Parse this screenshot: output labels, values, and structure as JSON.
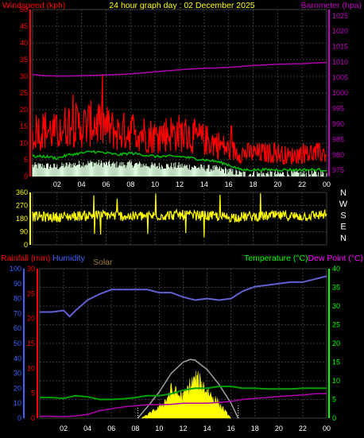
{
  "header": {
    "title": "24 hour graph day : 02 December 2025",
    "windspeed_label": "Windspeed (kph)",
    "barometer_label": "Barometer (hpa)"
  },
  "colors": {
    "background": "#000000",
    "grid": "#3a3a3a",
    "wind_axis": "#ff0000",
    "baro_axis": "#c000c0",
    "wind_gust": "#ff0000",
    "wind_avg": "#00c000",
    "wind_min": "#e0ffe0",
    "baro_line": "#b000b0",
    "direction": "#ffff00",
    "dir_axis": "#ffff00",
    "rain_axis": "#ff0000",
    "humidity_axis": "#4060ff",
    "humidity_line": "#6060d0",
    "temp_axis": "#00ff00",
    "temp_line": "#00a000",
    "dew_line": "#b000b0",
    "solar_fill": "#ffff00",
    "solar_curve": "#a0a0a0",
    "solar_label": "#a08040",
    "dew_label": "#ff00ff"
  },
  "chart_data": [
    {
      "type": "line",
      "name": "wind-baro",
      "x_ticks": [
        "02",
        "04",
        "06",
        "08",
        "10",
        "12",
        "14",
        "16",
        "18",
        "20",
        "22",
        "00"
      ],
      "y_left_ticks": [
        0,
        5,
        10,
        15,
        20,
        25,
        30,
        35,
        40,
        45,
        50
      ],
      "y_right_ticks": [
        975,
        980,
        985,
        990,
        995,
        1000,
        1005,
        1010,
        1015,
        1020,
        1025
      ],
      "ylim_left": [
        0,
        50
      ],
      "ylim_right": [
        973,
        1027
      ],
      "xlim": [
        0,
        24
      ],
      "series": [
        {
          "key": "gust",
          "x": [
            0,
            1,
            2,
            3,
            4,
            5,
            6,
            7,
            8,
            9,
            10,
            11,
            12,
            13,
            14,
            15,
            16,
            17,
            18,
            19,
            20,
            21,
            22,
            23,
            24
          ],
          "values": [
            13,
            14,
            13,
            16,
            15,
            16,
            15,
            13,
            14,
            13,
            12,
            13,
            13,
            12,
            11,
            10,
            8,
            7,
            7,
            7,
            7,
            6,
            7,
            7,
            7
          ]
        },
        {
          "key": "average",
          "x": [
            0,
            1,
            2,
            3,
            4,
            5,
            6,
            7,
            8,
            9,
            10,
            11,
            12,
            13,
            14,
            15,
            16,
            17,
            18,
            19,
            20,
            21,
            22,
            23,
            24
          ],
          "values": [
            6,
            6,
            5.5,
            6.5,
            7,
            7.5,
            7,
            6.5,
            7,
            6.5,
            6,
            6,
            6,
            5.5,
            5,
            4.5,
            3.5,
            2,
            2,
            2,
            2,
            2,
            2,
            2,
            2
          ]
        },
        {
          "key": "barometer",
          "x": [
            0,
            1,
            2,
            3,
            4,
            5,
            6,
            7,
            8,
            9,
            10,
            11,
            12,
            13,
            14,
            15,
            16,
            17,
            18,
            19,
            20,
            21,
            22,
            23,
            24
          ],
          "values": [
            1006,
            1005.6,
            1005.5,
            1005.5,
            1005.6,
            1005.7,
            1005.8,
            1006,
            1006.2,
            1006.5,
            1006.9,
            1007.2,
            1007.5,
            1007.8,
            1008,
            1008.1,
            1008.3,
            1008.6,
            1008.9,
            1009.1,
            1009.3,
            1009.4,
            1009.5,
            1009.7,
            1009.9
          ]
        }
      ]
    },
    {
      "type": "line",
      "name": "wind-direction",
      "y_left_ticks": [
        0,
        90,
        180,
        270,
        360
      ],
      "compass": [
        "N",
        "W",
        "S",
        "E",
        "N"
      ],
      "ylim": [
        0,
        360
      ],
      "series": [
        {
          "key": "direction",
          "x": [
            0,
            2,
            4,
            6,
            8,
            10,
            12,
            14,
            16,
            18,
            20,
            22,
            24
          ],
          "values": [
            195,
            190,
            200,
            205,
            195,
            200,
            205,
            200,
            190,
            195,
            200,
            195,
            210
          ]
        }
      ]
    },
    {
      "type": "line",
      "name": "temp-humidity-solar",
      "rain_label": "Rainfall (mm)",
      "humidity_label": "Humidity",
      "solar_label": "Solar",
      "temp_label": "Temperature (°C)",
      "dew_label": "Dew Point (°C)",
      "humidity_ticks": [
        0,
        10,
        20,
        30,
        40,
        50,
        60,
        70,
        80,
        90,
        100
      ],
      "rain_ticks": [
        0,
        5,
        10,
        15,
        20,
        25,
        30
      ],
      "temp_ticks": [
        0,
        5,
        10,
        15,
        20,
        25,
        30,
        35,
        40
      ],
      "humidity_ylim": [
        0,
        100
      ],
      "rain_ylim": [
        0,
        30
      ],
      "temp_ylim": [
        0,
        40
      ],
      "series": [
        {
          "key": "humidity",
          "x": [
            0,
            1,
            2,
            2.5,
            3,
            4,
            5,
            6,
            7,
            8,
            9,
            10,
            11,
            12,
            13,
            14,
            15,
            16,
            17,
            18,
            19,
            20,
            21,
            22,
            23,
            24
          ],
          "values": [
            71,
            71,
            72,
            68,
            72,
            79,
            83,
            86,
            86,
            86,
            86,
            84,
            84,
            81,
            79,
            80,
            79,
            80,
            85,
            88,
            89,
            90,
            91,
            91,
            93,
            95
          ]
        },
        {
          "key": "temperature",
          "x": [
            0,
            1,
            2,
            3,
            4,
            5,
            6,
            7,
            8,
            9,
            10,
            11,
            12,
            13,
            14,
            15,
            16,
            17,
            18,
            19,
            20,
            21,
            22,
            23,
            24
          ],
          "values": [
            5.5,
            5.5,
            5.3,
            6,
            5.7,
            5,
            5,
            5.2,
            5.5,
            6,
            6,
            6.5,
            7.5,
            8,
            8,
            8.5,
            8.5,
            8,
            8,
            7.8,
            7.8,
            7.8,
            8,
            8,
            8
          ]
        },
        {
          "key": "dew_point",
          "x": [
            0,
            1,
            2,
            3,
            4,
            5,
            6,
            7,
            8,
            9,
            10,
            11,
            12,
            13,
            14,
            15,
            16,
            17,
            18,
            19,
            20,
            21,
            22,
            23,
            24
          ],
          "values": [
            0.5,
            0.5,
            0.4,
            0.6,
            1,
            2,
            2.5,
            3,
            3.3,
            3.6,
            3.6,
            3.7,
            4,
            4,
            4,
            4.2,
            4.5,
            5,
            5.3,
            5.5,
            5.8,
            6,
            6.2,
            6.5,
            6.6
          ]
        },
        {
          "key": "solar_max",
          "x": [
            8.2,
            9,
            10,
            11,
            12,
            12.6,
            13,
            14,
            15,
            16,
            16.6
          ],
          "values": [
            0,
            3,
            7,
            12,
            15,
            15.7,
            15.5,
            13,
            9,
            4,
            0
          ]
        },
        {
          "key": "solar",
          "x": [
            8.5,
            9,
            9.5,
            10,
            10.5,
            11,
            11.5,
            12,
            12.5,
            13,
            13.5,
            14,
            14.5,
            15,
            15.5,
            16
          ],
          "values": [
            0,
            1,
            2,
            3,
            5,
            8,
            7,
            6,
            9,
            11,
            10,
            8,
            6,
            4,
            2,
            0
          ]
        }
      ]
    }
  ]
}
